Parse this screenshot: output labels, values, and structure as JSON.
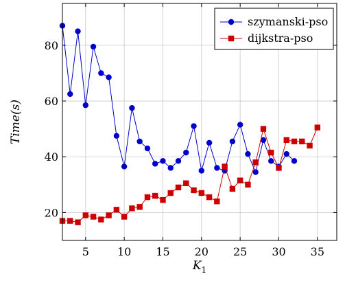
{
  "chart_data": {
    "type": "line",
    "xlabel_main": "K",
    "xlabel_sub": "1",
    "ylabel": "Time(s)",
    "xlim": [
      2,
      37.5
    ],
    "ylim": [
      10,
      95
    ],
    "xticks": [
      5,
      10,
      15,
      20,
      25,
      30,
      35
    ],
    "yticks": [
      20,
      40,
      60,
      80
    ],
    "grid": true,
    "legend_position": "top-right",
    "series": [
      {
        "name": "szymanski-pso",
        "color": "#0000cc",
        "marker": "circle",
        "x": [
          2,
          3,
          4,
          5,
          6,
          7,
          8,
          9,
          10,
          11,
          12,
          13,
          14,
          15,
          16,
          17,
          18,
          19,
          20,
          21,
          22,
          23,
          24,
          25,
          26,
          27,
          28,
          29,
          30,
          31,
          32
        ],
        "y": [
          87,
          62.5,
          85,
          58.5,
          79.5,
          70,
          68.5,
          47.5,
          36.5,
          57.5,
          45.5,
          43,
          37.5,
          38.5,
          36,
          38.5,
          41.5,
          51,
          35,
          45,
          36,
          35,
          45.5,
          51.5,
          41,
          34.5,
          46,
          38.5,
          36.5,
          41,
          38.5
        ]
      },
      {
        "name": "dijkstra-pso",
        "color": "#cc0000",
        "marker": "square",
        "x": [
          2,
          3,
          4,
          5,
          6,
          7,
          8,
          9,
          10,
          11,
          12,
          13,
          14,
          15,
          16,
          17,
          18,
          19,
          20,
          21,
          22,
          23,
          24,
          25,
          26,
          27,
          28,
          29,
          30,
          31,
          32,
          33,
          34,
          35
        ],
        "y": [
          17,
          17,
          16.5,
          19,
          18.5,
          17.5,
          19,
          21,
          18.5,
          21.5,
          22,
          25.5,
          26,
          24.5,
          27,
          29,
          30.5,
          28,
          27,
          25.5,
          24,
          36.5,
          28.5,
          31.5,
          30,
          38,
          50,
          41.5,
          36,
          46,
          45.5,
          45.5,
          44,
          50.5
        ]
      }
    ]
  }
}
